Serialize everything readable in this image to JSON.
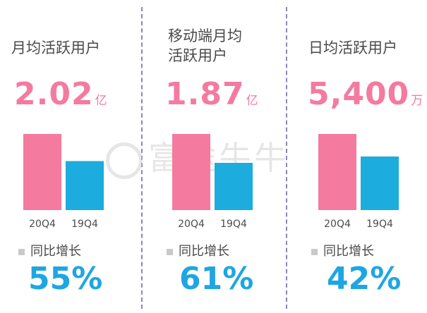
{
  "colors": {
    "current": "#f47aa0",
    "previous": "#1cacde",
    "growth": "#1fa6e2",
    "divider": "#8a86b8"
  },
  "watermark": {
    "text": "富途牛牛"
  },
  "chart_data": [
    {
      "type": "bar",
      "title": "月均活跃用户",
      "headline_value": "2.02",
      "headline_unit": "亿",
      "categories": [
        "20Q4",
        "19Q4"
      ],
      "values": [
        2.02,
        1.3
      ],
      "growth_label": "同比增长",
      "growth": "55%"
    },
    {
      "type": "bar",
      "title_lines": [
        "移动端月均",
        "活跃用户"
      ],
      "headline_value": "1.87",
      "headline_unit": "亿",
      "categories": [
        "20Q4",
        "19Q4"
      ],
      "values": [
        1.87,
        1.16
      ],
      "growth_label": "同比增长",
      "growth": "61%"
    },
    {
      "type": "bar",
      "title": "日均活跃用户",
      "headline_value": "5,400",
      "headline_unit": "万",
      "categories": [
        "20Q4",
        "19Q4"
      ],
      "values": [
        5400,
        3800
      ],
      "growth_label": "同比增长",
      "growth": "42%"
    }
  ]
}
